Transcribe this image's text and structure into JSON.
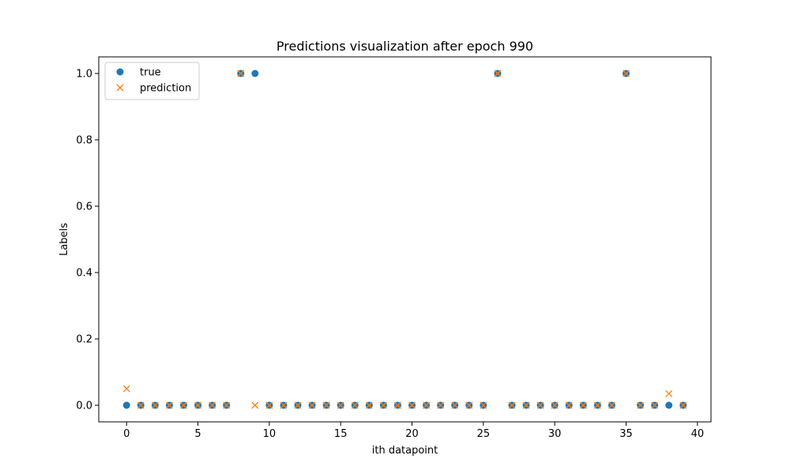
{
  "chart_data": {
    "type": "scatter",
    "title": "Predictions visualization after epoch 990",
    "xlabel": "ith datapoint",
    "ylabel": "Labels",
    "xlim": [
      -1.95,
      40.95
    ],
    "ylim": [
      -0.05,
      1.05
    ],
    "xticks": [
      0,
      5,
      10,
      15,
      20,
      25,
      30,
      35,
      40
    ],
    "yticks": [
      0.0,
      0.2,
      0.4,
      0.6,
      0.8,
      1.0
    ],
    "xtick_labels": [
      "0",
      "5",
      "10",
      "15",
      "20",
      "25",
      "30",
      "35",
      "40"
    ],
    "ytick_labels": [
      "0.0",
      "0.2",
      "0.4",
      "0.6",
      "0.8",
      "1.0"
    ],
    "grid": false,
    "legend_position": "upper-left",
    "x": [
      0,
      1,
      2,
      3,
      4,
      5,
      6,
      7,
      8,
      9,
      10,
      11,
      12,
      13,
      14,
      15,
      16,
      17,
      18,
      19,
      20,
      21,
      22,
      23,
      24,
      25,
      26,
      27,
      28,
      29,
      30,
      31,
      32,
      33,
      34,
      35,
      36,
      37,
      38,
      39
    ],
    "series": [
      {
        "name": "true",
        "marker": "circle",
        "color": "#1f77b4",
        "values": [
          0,
          0,
          0,
          0,
          0,
          0,
          0,
          0,
          1,
          1,
          0,
          0,
          0,
          0,
          0,
          0,
          0,
          0,
          0,
          0,
          0,
          0,
          0,
          0,
          0,
          0,
          1,
          0,
          0,
          0,
          0,
          0,
          0,
          0,
          0,
          1,
          0,
          0,
          0,
          0
        ]
      },
      {
        "name": "prediction",
        "marker": "x",
        "color": "#ff7f0e",
        "values": [
          0.05,
          0,
          0,
          0,
          0,
          0,
          0,
          0,
          1,
          0,
          0,
          0,
          0,
          0,
          0,
          0,
          0,
          0,
          0,
          0,
          0,
          0,
          0,
          0,
          0,
          0,
          1,
          0,
          0,
          0,
          0,
          0,
          0,
          0,
          0,
          1,
          0,
          0,
          0.035,
          0
        ]
      }
    ]
  }
}
